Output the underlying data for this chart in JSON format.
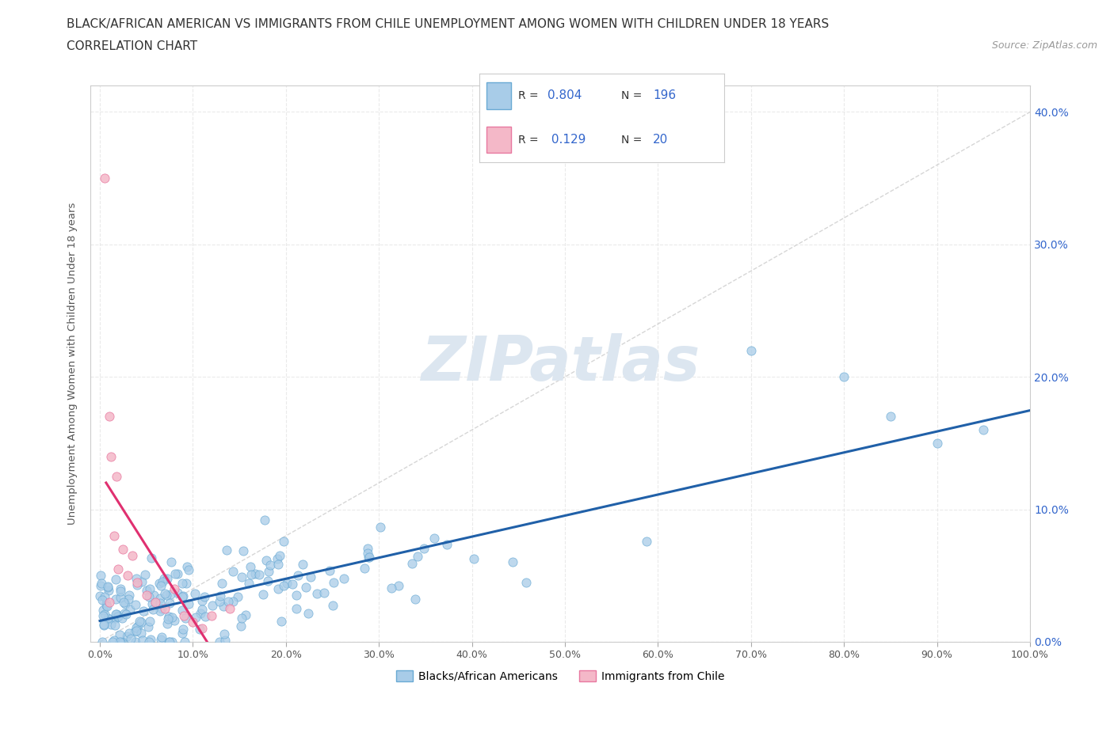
{
  "title_line1": "BLACK/AFRICAN AMERICAN VS IMMIGRANTS FROM CHILE UNEMPLOYMENT AMONG WOMEN WITH CHILDREN UNDER 18 YEARS",
  "title_line2": "CORRELATION CHART",
  "source_text": "Source: ZipAtlas.com",
  "ylabel": "Unemployment Among Women with Children Under 18 years",
  "xlim": [
    0,
    100
  ],
  "ylim": [
    0,
    42
  ],
  "xtick_labels": [
    "0.0%",
    "10.0%",
    "20.0%",
    "30.0%",
    "40.0%",
    "50.0%",
    "60.0%",
    "70.0%",
    "80.0%",
    "90.0%",
    "100.0%"
  ],
  "ytick_labels": [
    "0.0%",
    "10.0%",
    "20.0%",
    "30.0%",
    "40.0%"
  ],
  "ytick_values": [
    0,
    10,
    20,
    30,
    40
  ],
  "blue_color": "#a8cce8",
  "pink_color": "#f4b8c8",
  "blue_edge": "#6aaad4",
  "pink_edge": "#e878a0",
  "blue_trend_color": "#2060a8",
  "pink_trend_color": "#e03070",
  "diag_color": "#cccccc",
  "R_blue": 0.804,
  "N_blue": 196,
  "R_pink": 0.129,
  "N_pink": 20,
  "watermark": "ZIPatlas",
  "watermark_color": "#dce6f0",
  "background_color": "#ffffff",
  "grid_color": "#e8e8e8",
  "title_fontsize": 11,
  "subtitle_fontsize": 11,
  "axis_label_fontsize": 9.5,
  "tick_fontsize": 9,
  "source_fontsize": 9,
  "label_color": "#555555",
  "tick_color_y": "#3366cc",
  "tick_color_x": "#555555"
}
